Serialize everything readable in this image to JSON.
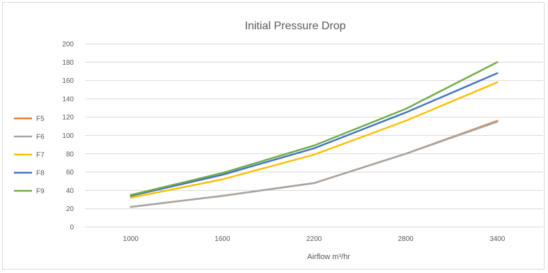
{
  "chart_data": {
    "type": "line",
    "title": "Initial Pressure Drop",
    "xlabel": "Airflow m³/hr",
    "ylabel": "",
    "categories": [
      "1000",
      "1600",
      "2200",
      "2800",
      "3400"
    ],
    "ylim": [
      0,
      200
    ],
    "yticks": [
      0,
      20,
      40,
      60,
      80,
      100,
      120,
      140,
      160,
      180,
      200
    ],
    "grid": true,
    "legend_position": "left",
    "series": [
      {
        "name": "F5",
        "color": "#ED7D31",
        "values": [
          22,
          34,
          48,
          80,
          116
        ]
      },
      {
        "name": "F6",
        "color": "#A5A5A5",
        "values": [
          22,
          34,
          48,
          80,
          115
        ]
      },
      {
        "name": "F7",
        "color": "#FFC000",
        "values": [
          32,
          52,
          79,
          116,
          158
        ]
      },
      {
        "name": "F8",
        "color": "#4472C4",
        "values": [
          34,
          57,
          86,
          125,
          168
        ]
      },
      {
        "name": "F9",
        "color": "#70AD47",
        "values": [
          35,
          59,
          89,
          129,
          180
        ]
      }
    ]
  }
}
